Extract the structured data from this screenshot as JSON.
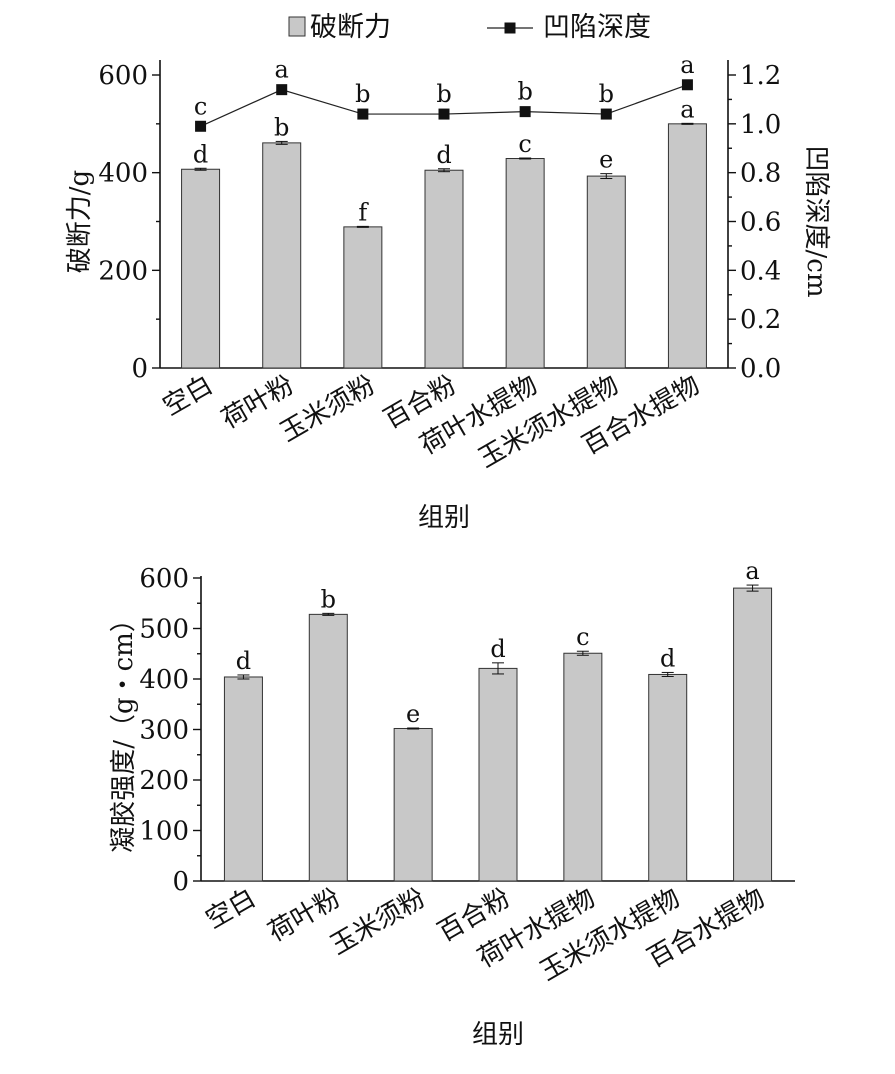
{
  "chart_data": [
    {
      "type": "bar",
      "categories": [
        "空白",
        "荷叶粉",
        "玉米须粉",
        "百合粉",
        "荷叶水提物",
        "玉米须水提物",
        "百合水提物"
      ],
      "xlabel": "组别",
      "ylabel": "破断力/g",
      "y2label": "凹陷深度/cm",
      "ylim": [
        0,
        600
      ],
      "y2lim": [
        0,
        1.2
      ],
      "yticks": [
        "0",
        "200",
        "400",
        "600"
      ],
      "y2ticks": [
        "0.0",
        "0.2",
        "0.4",
        "0.6",
        "0.8",
        "1.0",
        "1.2"
      ],
      "legend_position": "top",
      "series": [
        {
          "name": "破断力",
          "type": "bar",
          "axis": "left",
          "values": [
            407,
            461,
            289,
            405,
            429,
            393,
            500
          ],
          "errors": [
            2,
            3,
            1,
            3,
            1,
            5,
            1
          ],
          "labels": [
            "d",
            "b",
            "f",
            "d",
            "c",
            "e",
            "a"
          ]
        },
        {
          "name": "凹陷深度",
          "type": "line",
          "axis": "right",
          "values": [
            0.99,
            1.14,
            1.04,
            1.04,
            1.05,
            1.04,
            1.16
          ],
          "labels": [
            "c",
            "a",
            "b",
            "b",
            "b",
            "b",
            "a"
          ]
        }
      ]
    },
    {
      "type": "bar",
      "categories": [
        "空白",
        "荷叶粉",
        "玉米须粉",
        "百合粉",
        "荷叶水提物",
        "玉米须水提物",
        "百合水提物"
      ],
      "xlabel": "组别",
      "ylabel": "凝胶强度/（g・cm）",
      "ylim": [
        0,
        600
      ],
      "yticks": [
        "0",
        "100",
        "200",
        "300",
        "400",
        "500",
        "600"
      ],
      "series": [
        {
          "type": "bar",
          "values": [
            404,
            528,
            302,
            421,
            451,
            409,
            580
          ],
          "errors": [
            4,
            2,
            1,
            11,
            4,
            4,
            6
          ],
          "labels": [
            "d",
            "b",
            "e",
            "d",
            "c",
            "d",
            "a"
          ]
        }
      ]
    }
  ]
}
